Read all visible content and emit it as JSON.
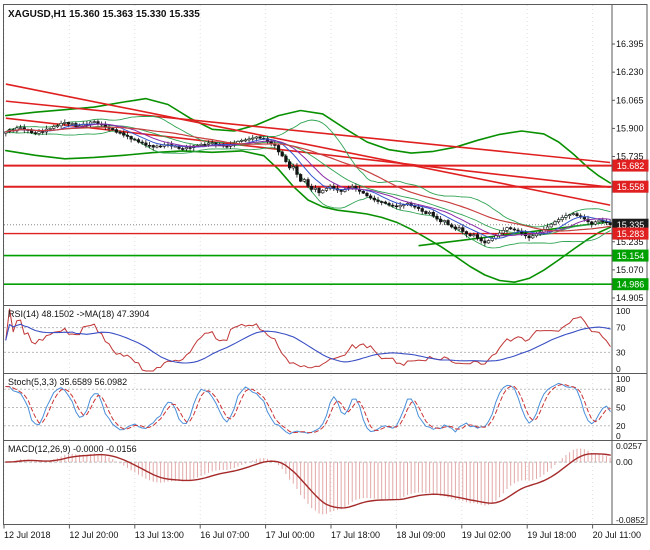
{
  "titlebar": {
    "title": "XAGUSD,H1 15.360 15.363 15.330 15.335"
  },
  "colors": {
    "background": "#FFFFFF",
    "frame": "#5A5A5A",
    "grid": "#DFDFDF",
    "text": "#111111",
    "candle_up": "#FFFFFF",
    "candle_down": "#141414",
    "candle_border": "#141414",
    "envelope": "#089000",
    "bollinger": "#2FA352",
    "ma_fast": "#3355CC",
    "ma_mid": "#8A2BA8",
    "ma_slow": "#C84040",
    "trend": "#E02020",
    "badge_text": "#FFFFFF",
    "rsi_line": "#C03535",
    "rsi_ma": "#3A4FC4",
    "stoch_k": "#4A8FD9",
    "stoch_d": "#CC3333",
    "macd_hist": "#E2A8A8",
    "macd_signal": "#A52A2A",
    "level_dotted": "#BBBBBB",
    "bid_line": "#888888"
  },
  "chart_data": {
    "type": "candlestick",
    "symbol": "XAGUSD",
    "timeframe": "H1",
    "current_bar": {
      "open": "15.360",
      "high": "15.363",
      "low": "15.330",
      "close": "15.335"
    },
    "x_labels": [
      "12 Jul 2018",
      "12 Jul 20:00",
      "13 Jul 13:00",
      "16 Jul 07:00",
      "17 Jul 00:00",
      "17 Jul 18:00",
      "18 Jul 09:00",
      "19 Jul 02:00",
      "19 Jul 18:00",
      "20 Jul 11:00"
    ],
    "main": {
      "y_range": [
        14.864,
        16.624
      ],
      "y_ticks": [
        "16.395",
        "16.230",
        "16.065",
        "15.900",
        "15.735",
        "15.235",
        "15.070",
        "14.905"
      ],
      "first_open": 15.872,
      "closes": [
        15.88,
        15.892,
        15.885,
        15.903,
        15.905,
        15.89,
        15.893,
        15.875,
        15.87,
        15.882,
        15.879,
        15.896,
        15.9,
        15.912,
        15.915,
        15.93,
        15.935,
        15.926,
        15.929,
        15.912,
        15.915,
        15.925,
        15.922,
        15.938,
        15.94,
        15.926,
        15.924,
        15.906,
        15.9,
        15.893,
        15.877,
        15.874,
        15.86,
        15.853,
        15.837,
        15.834,
        15.82,
        15.815,
        15.801,
        15.8,
        15.79,
        15.797,
        15.795,
        15.804,
        15.805,
        15.796,
        15.796,
        15.782,
        15.78,
        15.788,
        15.787,
        15.798,
        15.8,
        15.807,
        15.806,
        15.814,
        15.815,
        15.807,
        15.803,
        15.796,
        15.795,
        15.807,
        15.81,
        15.824,
        15.83,
        15.832,
        15.838,
        15.843,
        15.85,
        15.842,
        15.84,
        15.822,
        15.81,
        15.8,
        15.762,
        15.738,
        15.705,
        15.668,
        15.676,
        15.63,
        15.59,
        15.6,
        15.56,
        15.542,
        15.55,
        15.522,
        15.536,
        15.548,
        15.56,
        15.547,
        15.538,
        15.53,
        15.543,
        15.552,
        15.56,
        15.544,
        15.531,
        15.52,
        15.504,
        15.491,
        15.48,
        15.471,
        15.468,
        15.46,
        15.45,
        15.446,
        15.44,
        15.449,
        15.452,
        15.46,
        15.447,
        15.438,
        15.43,
        15.413,
        15.4,
        15.408,
        15.385,
        15.368,
        15.352,
        15.36,
        15.335,
        15.322,
        15.31,
        15.318,
        15.295,
        15.28,
        15.27,
        15.277,
        15.255,
        15.24,
        15.228,
        15.242,
        15.255,
        15.27,
        15.286,
        15.302,
        15.318,
        15.31,
        15.304,
        15.298,
        15.284,
        15.27,
        15.258,
        15.27,
        15.281,
        15.292,
        15.307,
        15.322,
        15.338,
        15.352,
        15.365,
        15.378,
        15.388,
        15.394,
        15.4,
        15.388,
        15.38,
        15.368,
        15.352,
        15.338,
        15.352,
        15.362,
        15.352,
        15.348,
        15.335
      ],
      "bid_price": 15.335,
      "price_badges": [
        {
          "label": "15.682",
          "price": 15.682,
          "color": "#E02020"
        },
        {
          "label": "15.558",
          "price": 15.558,
          "color": "#E02020"
        },
        {
          "label": "15.335",
          "price": 15.335,
          "color": "#1C1C1C"
        },
        {
          "label": "15.283",
          "price": 15.283,
          "color": "#E02020"
        },
        {
          "label": "15.154",
          "price": 15.154,
          "color": "#00A000"
        },
        {
          "label": "14.986",
          "price": 14.986,
          "color": "#00A000"
        }
      ],
      "level_lines": [
        {
          "price": 15.682,
          "color": "#E02020",
          "width": 2
        },
        {
          "price": 15.558,
          "color": "#E02020",
          "width": 2
        },
        {
          "price": 15.283,
          "color": "#E02020",
          "width": 1.4
        },
        {
          "price": 15.154,
          "color": "#00A000",
          "width": 1.6
        },
        {
          "price": 14.986,
          "color": "#00A000",
          "width": 1.6
        }
      ],
      "trend_lines": [
        {
          "from": [
            0,
            16.16
          ],
          "to": [
            164,
            15.45
          ]
        },
        {
          "from": [
            0,
            16.06
          ],
          "to": [
            164,
            15.7
          ]
        },
        {
          "from": [
            0,
            15.96
          ],
          "to": [
            164,
            15.555
          ]
        }
      ],
      "support_trend": {
        "from": [
          112,
          15.212
        ],
        "to": [
          164,
          15.352
        ]
      },
      "envelope_upper": [
        [
          0,
          15.975
        ],
        [
          8,
          15.995
        ],
        [
          16,
          16.01
        ],
        [
          24,
          16.025
        ],
        [
          32,
          16.055
        ],
        [
          38,
          16.075
        ],
        [
          44,
          16.04
        ],
        [
          50,
          15.96
        ],
        [
          56,
          15.895
        ],
        [
          62,
          15.885
        ],
        [
          68,
          15.92
        ],
        [
          74,
          15.975
        ],
        [
          80,
          16.005
        ],
        [
          86,
          15.985
        ],
        [
          92,
          15.9
        ],
        [
          98,
          15.82
        ],
        [
          104,
          15.775
        ],
        [
          110,
          15.755
        ],
        [
          116,
          15.765
        ],
        [
          122,
          15.79
        ],
        [
          128,
          15.83
        ],
        [
          134,
          15.865
        ],
        [
          140,
          15.885
        ],
        [
          146,
          15.868
        ],
        [
          150,
          15.82
        ],
        [
          154,
          15.75
        ],
        [
          158,
          15.67
        ],
        [
          161,
          15.62
        ],
        [
          164,
          15.58
        ]
      ],
      "envelope_lower": [
        [
          0,
          15.77
        ],
        [
          8,
          15.742
        ],
        [
          16,
          15.722
        ],
        [
          24,
          15.73
        ],
        [
          32,
          15.742
        ],
        [
          40,
          15.758
        ],
        [
          48,
          15.768
        ],
        [
          56,
          15.76
        ],
        [
          64,
          15.768
        ],
        [
          70,
          15.74
        ],
        [
          74,
          15.66
        ],
        [
          78,
          15.56
        ],
        [
          82,
          15.48
        ],
        [
          86,
          15.44
        ],
        [
          90,
          15.42
        ],
        [
          94,
          15.41
        ],
        [
          98,
          15.398
        ],
        [
          102,
          15.378
        ],
        [
          106,
          15.35
        ],
        [
          110,
          15.308
        ],
        [
          114,
          15.258
        ],
        [
          118,
          15.208
        ],
        [
          122,
          15.15
        ],
        [
          126,
          15.09
        ],
        [
          130,
          15.04
        ],
        [
          134,
          15.008
        ],
        [
          138,
          14.998
        ],
        [
          142,
          15.02
        ],
        [
          146,
          15.068
        ],
        [
          150,
          15.128
        ],
        [
          154,
          15.19
        ],
        [
          158,
          15.25
        ],
        [
          161,
          15.29
        ],
        [
          164,
          15.32
        ]
      ],
      "overlay_periods": {
        "bb_period": 20,
        "bb_dev": 2,
        "ma_fast": 8,
        "ma_mid": 13,
        "ma_slow": 34
      }
    },
    "rsi": {
      "label": "RSI(14) 48.1502 ->MA(18) 47.3904",
      "period": 14,
      "ma_period": 18,
      "current": "48.1502",
      "ma_current": "47.3904",
      "levels": [
        30,
        70
      ],
      "y_ticks": [
        100,
        70,
        30,
        0
      ]
    },
    "stoch": {
      "label": "Stoch(5,3,3) 35.6589 56.0982",
      "k_period": 5,
      "d_period": 3,
      "slowing": 3,
      "current_k": "35.6589",
      "current_d": "56.0982",
      "levels": [
        20,
        50,
        80
      ],
      "y_ticks": [
        100,
        80,
        50,
        20,
        0
      ]
    },
    "macd": {
      "label": "MACD(12,26,9) -0.0000 -0.0156",
      "fast": 12,
      "slow": 26,
      "signal": 9,
      "current_main": "-0.0000",
      "current_signal": "-0.0156",
      "y_ticks": [
        {
          "v": 0.0257,
          "label": "0.0257"
        },
        {
          "v": 0,
          "label": "0.00"
        },
        {
          "v": -0.0852,
          "label": "-0.0852"
        }
      ]
    }
  }
}
